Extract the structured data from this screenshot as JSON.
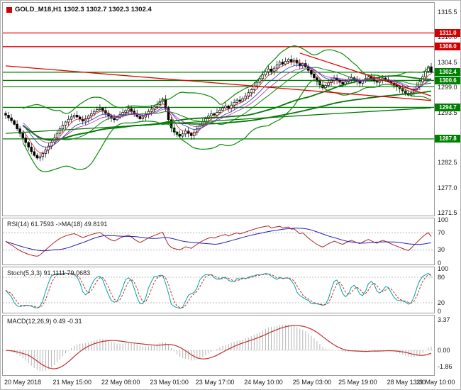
{
  "header": {
    "title": "GOLD_M18,H1 1302.3 1302.7 1302.3 1302.4",
    "icon_color": "#d40000"
  },
  "colors": {
    "background": "#ffffff",
    "panel_border": "#9b9b9b",
    "axis_text": "#1a1a1a",
    "resistance": "#e60000",
    "support": "#007a00",
    "tag_red": "#d40000",
    "tag_green": "#008000",
    "candle": "#000000",
    "bollinger": "#0a8a0a",
    "ma_slow": "#067806",
    "ema_fast": "#cc2222",
    "ema_mid": "#2233cc",
    "ema_slow": "#aa33aa",
    "rsi_line": "#b22222",
    "rsi_ma": "#2222b2",
    "stoch_k": "#00a2a2",
    "stoch_d": "#c03030",
    "macd_hist": "#b4b4b4",
    "macd_signal": "#c03030",
    "osc_level": "#a8a8a8"
  },
  "chart_data": {
    "type": "candlestick",
    "symbol": "GOLD_M18",
    "timeframe": "H1",
    "quote_ohlc": {
      "open": 1302.3,
      "high": 1302.7,
      "low": 1302.3,
      "close": 1302.4
    },
    "y_range": [
      1271.0,
      1317.6
    ],
    "price_ticks": [
      1315.5,
      1310.0,
      1304.5,
      1299.0,
      1293.5,
      1288.0,
      1282.5,
      1277.0,
      1271.5
    ],
    "x_labels": [
      "20 May 2018",
      "21 May 15:00",
      "22 May 08:00",
      "23 May 01:00",
      "23 May 17:00",
      "24 May 10:00",
      "25 May 03:00",
      "25 May 19:00",
      "28 May 13:00",
      "29 May 10:00"
    ],
    "x_label_bars": [
      0,
      17,
      34,
      51,
      67,
      84,
      101,
      117,
      134,
      149
    ],
    "first_open": 1293.4,
    "wick_amplitude": 0.9,
    "closes": [
      1293.0,
      1292.4,
      1291.8,
      1291.0,
      1290.0,
      1289.0,
      1288.0,
      1287.0,
      1286.0,
      1285.0,
      1284.2,
      1283.6,
      1283.9,
      1284.6,
      1285.4,
      1286.2,
      1287.1,
      1288.0,
      1289.0,
      1290.0,
      1290.8,
      1291.5,
      1292.1,
      1292.6,
      1293.0,
      1292.6,
      1292.1,
      1291.7,
      1292.2,
      1292.8,
      1293.3,
      1293.8,
      1294.2,
      1294.5,
      1294.0,
      1293.4,
      1292.8,
      1292.3,
      1292.0,
      1292.5,
      1293.1,
      1293.6,
      1294.0,
      1294.4,
      1293.9,
      1293.3,
      1292.7,
      1292.2,
      1292.6,
      1293.2,
      1293.8,
      1294.3,
      1294.8,
      1295.3,
      1296.0,
      1296.5,
      1294.5,
      1292.0,
      1290.2,
      1289.3,
      1288.8,
      1288.4,
      1288.9,
      1289.5,
      1289.0,
      1288.5,
      1289.2,
      1290.0,
      1290.8,
      1291.5,
      1292.2,
      1292.8,
      1293.3,
      1293.0,
      1293.6,
      1294.1,
      1294.6,
      1295.0,
      1294.5,
      1295.2,
      1295.8,
      1296.3,
      1296.0,
      1296.6,
      1297.2,
      1297.9,
      1298.6,
      1299.4,
      1300.2,
      1301.0,
      1301.8,
      1302.5,
      1303.1,
      1302.6,
      1303.3,
      1304.0,
      1304.6,
      1304.2,
      1304.8,
      1305.2,
      1304.7,
      1305.0,
      1304.4,
      1303.8,
      1304.3,
      1303.6,
      1302.8,
      1302.0,
      1301.2,
      1300.4,
      1299.6,
      1299.0,
      1299.5,
      1300.1,
      1300.6,
      1301.1,
      1300.7,
      1300.2,
      1299.8,
      1300.3,
      1300.8,
      1301.2,
      1300.8,
      1300.4,
      1300.0,
      1300.5,
      1301.0,
      1301.4,
      1301.0,
      1300.6,
      1300.2,
      1300.7,
      1301.1,
      1300.8,
      1300.4,
      1300.0,
      1299.6,
      1299.2,
      1298.8,
      1298.3,
      1297.8,
      1297.4,
      1297.9,
      1298.6,
      1299.4,
      1300.3,
      1301.4,
      1302.6,
      1303.6,
      1302.4
    ],
    "levels": [
      {
        "price": 1311.0,
        "color": "resistance",
        "tag": "1311.0"
      },
      {
        "price": 1308.0,
        "color": "resistance",
        "tag": "1308.0"
      },
      {
        "price": 1302.4,
        "color": "support",
        "tag": "1302.4"
      },
      {
        "price": 1300.6,
        "color": "support",
        "tag": "1300.6"
      },
      {
        "price": 1299.2,
        "color": "support",
        "tag": ""
      },
      {
        "price": 1294.7,
        "color": "support",
        "tag": "1294.7"
      },
      {
        "price": 1287.8,
        "color": "support",
        "tag": "1287.8"
      }
    ],
    "trendlines": [
      {
        "b1": 0,
        "p1": 1303.8,
        "b2": 149,
        "p2": 1296.2,
        "color": "resistance"
      },
      {
        "b1": 103,
        "p1": 1306.6,
        "b2": 149,
        "p2": 1297.2,
        "color": "resistance"
      },
      {
        "b1": 0,
        "p1": 1289.0,
        "b2": 149,
        "p2": 1294.6,
        "color": "support"
      }
    ],
    "overlays": {
      "bollinger": {
        "period": 20,
        "deviation": 2.2
      },
      "sma": [
        50,
        100
      ],
      "ema": [
        5,
        10,
        15
      ]
    },
    "indicators": {
      "rsi": {
        "label": "RSI(14) 61.7593  ->MA(18) 49.8191",
        "period": 14,
        "ma_period": 18,
        "value": 61.7593,
        "ma_value": 49.8191,
        "levels": [
          70,
          30
        ],
        "axis_ticks": [
          100,
          70,
          30,
          0
        ]
      },
      "stoch": {
        "label": "Stoch(5,3,3) 91.1111 79.0683",
        "k_period": 5,
        "slowing": 3,
        "d_period": 3,
        "value": 91.1111,
        "signal": 79.0683,
        "levels": [
          80,
          20
        ],
        "axis_ticks": [
          100,
          80,
          20,
          0
        ]
      },
      "macd": {
        "label": "MACD(12,26,9) 0.49 -0.31",
        "fast": 12,
        "slow": 26,
        "signal_period": 9,
        "value": 0.49,
        "signal": -0.31,
        "axis_ticks": [
          3.37,
          0.0,
          -1.86
        ],
        "y_range": [
          -2.35,
          3.45
        ]
      }
    }
  }
}
